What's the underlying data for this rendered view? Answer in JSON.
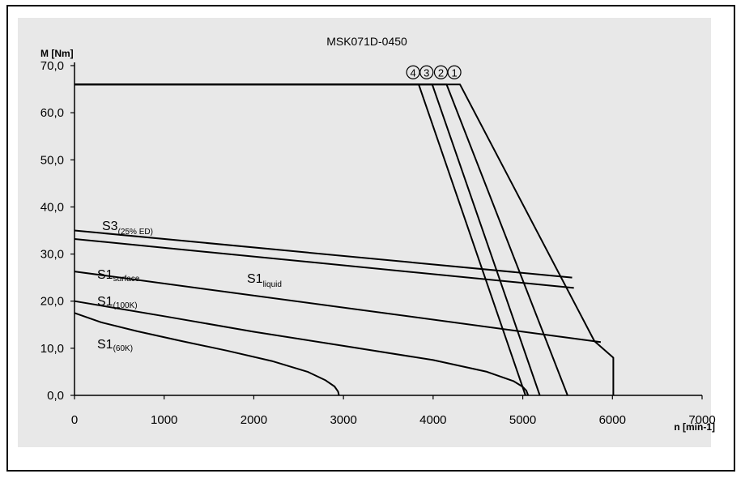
{
  "chart_data": {
    "type": "line",
    "title": "MSK071D-0450",
    "xlabel": "n [min-1]",
    "ylabel": "M [Nm]",
    "xlim": [
      0,
      7000
    ],
    "ylim": [
      0,
      70
    ],
    "xticks": [
      "0",
      "1000",
      "2000",
      "3000",
      "4000",
      "5000",
      "6000",
      "7000"
    ],
    "yticks": [
      "0,0",
      "10,0",
      "20,0",
      "30,0",
      "40,0",
      "50,0",
      "60,0",
      "70,0"
    ],
    "grid": false,
    "curve_labels": [
      {
        "main": "S3",
        "sub": "(25% ED)"
      },
      {
        "main": "S1",
        "sub": "liquid"
      },
      {
        "main": "S1",
        "sub": "surface"
      },
      {
        "main": "S1",
        "sub": "(100K)"
      },
      {
        "main": "S1",
        "sub": "(60K)"
      }
    ],
    "marker_labels": [
      "4",
      "3",
      "2",
      "1"
    ],
    "series": [
      {
        "name": "1",
        "x": [
          0,
          4300,
          5800,
          5980,
          6010,
          6010
        ],
        "y": [
          66,
          66,
          11.5,
          8.5,
          8,
          0
        ]
      },
      {
        "name": "2",
        "x": [
          0,
          4150,
          5500
        ],
        "y": [
          66,
          66,
          0
        ]
      },
      {
        "name": "3",
        "x": [
          0,
          3990,
          5190
        ],
        "y": [
          66,
          66,
          0
        ]
      },
      {
        "name": "4",
        "x": [
          0,
          3840,
          5030
        ],
        "y": [
          66,
          66,
          0
        ]
      },
      {
        "name": "S3(25% ED)",
        "x": [
          0,
          5550
        ],
        "y": [
          35,
          25
        ]
      },
      {
        "name": "S1liquid",
        "x": [
          0,
          5570
        ],
        "y": [
          33.2,
          22.8
        ]
      },
      {
        "name": "S1surface",
        "x": [
          0,
          5870
        ],
        "y": [
          26.3,
          11.3
        ]
      },
      {
        "name": "S1(100K)",
        "x": [
          0,
          1000,
          2000,
          3000,
          4000,
          4600,
          4900,
          5000,
          5040,
          5060
        ],
        "y": [
          20,
          16.8,
          13.5,
          10.5,
          7.5,
          5.0,
          3.0,
          1.8,
          1.0,
          0
        ]
      },
      {
        "name": "S1(60K)",
        "x": [
          0,
          300,
          700,
          1200,
          1700,
          2200,
          2600,
          2800,
          2900,
          2940,
          2950
        ],
        "y": [
          17.5,
          15.5,
          13.6,
          11.5,
          9.5,
          7.3,
          5.0,
          3.2,
          1.9,
          0.8,
          0
        ]
      }
    ]
  }
}
